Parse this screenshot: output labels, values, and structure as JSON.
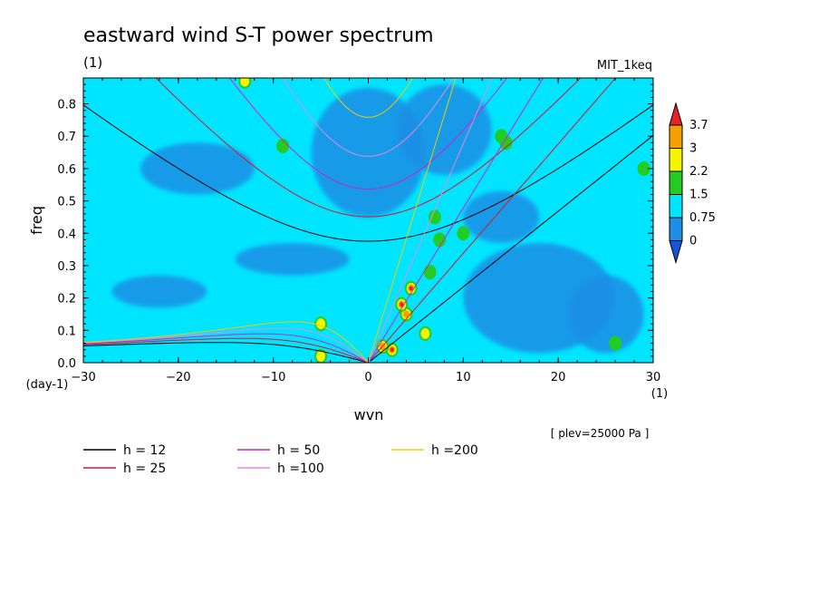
{
  "chart_data": {
    "type": "heatmap",
    "title": "eastward wind S-T power spectrum",
    "subtitle": "(1)",
    "model": "MIT_1keq",
    "xlabel": "wvn",
    "ylabel": "freq",
    "x_unit": "(1)",
    "y_unit": "(day-1)",
    "annotation": "[ plev=25000 Pa ]",
    "xlim": [
      -30,
      30
    ],
    "ylim": [
      0,
      0.88
    ],
    "x_ticks": [
      "−30",
      "−20",
      "−10",
      "0",
      "10",
      "20",
      "30"
    ],
    "x_tick_values": [
      -30,
      -20,
      -10,
      0,
      10,
      20,
      30
    ],
    "y_ticks": [
      "0.0",
      "0.1",
      "0.2",
      "0.3",
      "0.4",
      "0.5",
      "0.6",
      "0.7",
      "0.8"
    ],
    "y_tick_values": [
      0,
      0.1,
      0.2,
      0.3,
      0.4,
      0.5,
      0.6,
      0.7,
      0.8
    ],
    "colorbar": {
      "labels": [
        "3.7",
        "3",
        "2.2",
        "1.5",
        "0.75",
        "0"
      ],
      "levels": [
        3.7,
        3,
        2.2,
        1.5,
        0.75,
        0
      ],
      "colors": [
        "#e8202a",
        "#f5a000",
        "#f5f500",
        "#22cc22",
        "#00e5ff",
        "#1e8fe6",
        "#1555d6"
      ]
    },
    "background_color": "#00e5ff",
    "blobs": [
      {
        "x": 2.5,
        "y": 0.04,
        "level": 3.7
      },
      {
        "x": 1.5,
        "y": 0.05,
        "level": 3.0
      },
      {
        "x": 4.0,
        "y": 0.15,
        "level": 3.0
      },
      {
        "x": 3.5,
        "y": 0.18,
        "level": 3.7
      },
      {
        "x": 4.5,
        "y": 0.23,
        "level": 3.7
      },
      {
        "x": 6.0,
        "y": 0.09,
        "level": 2.2
      },
      {
        "x": 6.5,
        "y": 0.28,
        "level": 1.5
      },
      {
        "x": 7.5,
        "y": 0.38,
        "level": 1.5
      },
      {
        "x": 7.0,
        "y": 0.45,
        "level": 1.5
      },
      {
        "x": 10.0,
        "y": 0.4,
        "level": 1.5
      },
      {
        "x": -5.0,
        "y": 0.12,
        "level": 2.2
      },
      {
        "x": -5.0,
        "y": 0.02,
        "level": 2.2
      },
      {
        "x": -13.0,
        "y": 0.87,
        "level": 2.2
      },
      {
        "x": 14.5,
        "y": 0.68,
        "level": 1.5
      },
      {
        "x": 14.0,
        "y": 0.7,
        "level": 1.5
      },
      {
        "x": 29.0,
        "y": 0.6,
        "level": 1.5
      },
      {
        "x": -9.0,
        "y": 0.67,
        "level": 1.5
      },
      {
        "x": 26.0,
        "y": 0.06,
        "level": 1.5
      }
    ],
    "dark_regions": [
      {
        "x": 0,
        "y": 0.65,
        "rx": 6,
        "ry": 0.2
      },
      {
        "x": 8,
        "y": 0.72,
        "rx": 5,
        "ry": 0.14
      },
      {
        "x": 18,
        "y": 0.2,
        "rx": 8,
        "ry": 0.17
      },
      {
        "x": 25,
        "y": 0.15,
        "rx": 4,
        "ry": 0.12
      },
      {
        "x": -18,
        "y": 0.6,
        "rx": 6,
        "ry": 0.08
      },
      {
        "x": -8,
        "y": 0.32,
        "rx": 6,
        "ry": 0.05
      },
      {
        "x": -22,
        "y": 0.22,
        "rx": 5,
        "ry": 0.05
      },
      {
        "x": 14,
        "y": 0.45,
        "rx": 4,
        "ry": 0.08
      }
    ],
    "series": [
      {
        "name": "h = 12",
        "depth": 12,
        "color": "#000000",
        "legend_label": "h = 12"
      },
      {
        "name": "h = 25",
        "depth": 25,
        "color": "#e0102a",
        "legend_label": "h = 25"
      },
      {
        "name": "h = 50",
        "depth": 50,
        "color": "#cc22cc",
        "legend_label": "h = 50"
      },
      {
        "name": "h =100",
        "depth": 100,
        "color": "#e08ae0",
        "legend_label": "h =100"
      },
      {
        "name": "h =200",
        "depth": 200,
        "color": "#e8d000",
        "legend_label": "h =200"
      }
    ]
  }
}
